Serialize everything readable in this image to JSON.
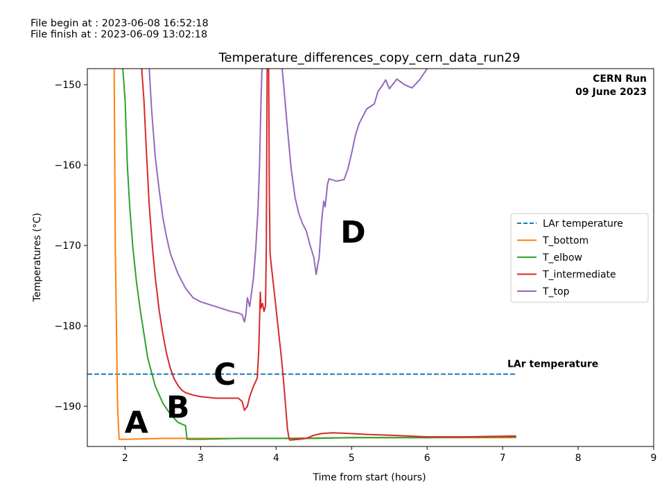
{
  "file_info": {
    "begin": "File begin at : 2023-06-08 16:52:18",
    "finish": "File finish at : 2023-06-09 13:02:18"
  },
  "chart_data": {
    "type": "line",
    "title": "Temperature_differences_copy_cern_data_run29",
    "xlabel": "Time from start (hours)",
    "ylabel": "Temperatures (°C)",
    "xlim": [
      1.5,
      9
    ],
    "ylim": [
      -195,
      -148
    ],
    "xticks": [
      2,
      3,
      4,
      5,
      6,
      7,
      8,
      9
    ],
    "yticks": [
      -190,
      -180,
      -170,
      -160,
      -150
    ],
    "ytick_labels": [
      "−190",
      "−180",
      "−170",
      "−160",
      "−150"
    ],
    "grid": false,
    "legend_position": "center-right",
    "corner_text": [
      "CERN Run",
      "09 June 2023"
    ],
    "reference_line": {
      "name": "LAr temperature",
      "y": -186,
      "x": [
        1.5,
        7.18
      ],
      "label": "LAr temperature",
      "color": "#1f77b4",
      "style": "dashed"
    },
    "series": [
      {
        "name": "T_bottom",
        "color": "#ff7f0e",
        "x": [
          1.85,
          1.87,
          1.9,
          1.92,
          2.0,
          2.5,
          2.8,
          3.0,
          4.0,
          5.0,
          6.0,
          7.18
        ],
        "y": [
          -140,
          -170,
          -190,
          -194.1,
          -194.1,
          -194.0,
          -194.0,
          -194.0,
          -194.0,
          -193.9,
          -193.9,
          -193.9
        ]
      },
      {
        "name": "T_elbow",
        "color": "#2ca02c",
        "x": [
          1.97,
          2.0,
          2.03,
          2.06,
          2.1,
          2.15,
          2.2,
          2.25,
          2.3,
          2.4,
          2.5,
          2.6,
          2.7,
          2.77,
          2.8,
          2.82,
          3.0,
          3.5,
          4.0,
          4.5,
          5.0,
          5.5,
          6.0,
          7.18
        ],
        "y": [
          -148,
          -152,
          -160,
          -165,
          -170,
          -174.5,
          -178,
          -181,
          -184,
          -187.5,
          -189.6,
          -191,
          -192,
          -192.3,
          -192.4,
          -194.1,
          -194.1,
          -194.0,
          -194.0,
          -194.0,
          -193.9,
          -193.9,
          -193.9,
          -193.8
        ]
      },
      {
        "name": "T_intermediate",
        "color": "#d62728",
        "x": [
          2.22,
          2.25,
          2.28,
          2.32,
          2.36,
          2.4,
          2.45,
          2.5,
          2.55,
          2.6,
          2.65,
          2.7,
          2.75,
          2.8,
          2.9,
          3.0,
          3.1,
          3.2,
          3.3,
          3.4,
          3.5,
          3.55,
          3.58,
          3.62,
          3.65,
          3.7,
          3.75,
          3.77,
          3.79,
          3.8,
          3.82,
          3.84,
          3.86,
          3.87,
          3.88,
          3.89,
          3.9,
          3.91,
          3.92,
          3.94,
          3.96,
          3.99,
          4.03,
          4.07,
          4.1,
          4.13,
          4.15,
          4.17,
          4.18,
          4.19,
          4.3,
          4.4,
          4.5,
          4.6,
          4.75,
          5.0,
          5.2,
          5.5,
          6.0,
          6.5,
          7.18
        ],
        "y": [
          -148,
          -152,
          -158,
          -165,
          -170,
          -174,
          -178,
          -181,
          -183.5,
          -185.3,
          -186.6,
          -187.4,
          -188.0,
          -188.3,
          -188.6,
          -188.8,
          -188.9,
          -189.0,
          -189.0,
          -189.0,
          -189.0,
          -189.4,
          -190.5,
          -190.0,
          -188.8,
          -187.5,
          -186.5,
          -183.0,
          -175.8,
          -177.8,
          -177.2,
          -178.2,
          -177.5,
          -170.0,
          -150.0,
          -130.0,
          -145.0,
          -163.0,
          -171.0,
          -172.8,
          -174.5,
          -177.0,
          -180.5,
          -184.0,
          -187.0,
          -190.5,
          -192.8,
          -194.0,
          -194.2,
          -194.2,
          -194.1,
          -194.0,
          -193.6,
          -193.4,
          -193.3,
          -193.4,
          -193.5,
          -193.6,
          -193.8,
          -193.8,
          -193.7
        ]
      },
      {
        "name": "T_top",
        "color": "#9467bd",
        "x": [
          2.32,
          2.35,
          2.4,
          2.45,
          2.5,
          2.55,
          2.6,
          2.7,
          2.8,
          2.9,
          3.0,
          3.2,
          3.4,
          3.5,
          3.55,
          3.58,
          3.6,
          3.62,
          3.65,
          3.7,
          3.73,
          3.76,
          3.78,
          3.8,
          3.82,
          4.0,
          4.08,
          4.1,
          4.15,
          4.2,
          4.25,
          4.3,
          4.35,
          4.4,
          4.45,
          4.5,
          4.53,
          4.55,
          4.57,
          4.6,
          4.63,
          4.65,
          4.68,
          4.7,
          4.8,
          4.9,
          4.95,
          5.0,
          5.05,
          5.1,
          5.2,
          5.3,
          5.35,
          5.4,
          5.45,
          5.5,
          5.6,
          5.7,
          5.8,
          5.9,
          6.0
        ],
        "y": [
          -148,
          -153,
          -159,
          -163,
          -166.5,
          -169,
          -171,
          -173.5,
          -175.3,
          -176.5,
          -177.0,
          -177.6,
          -178.2,
          -178.4,
          -178.6,
          -179.5,
          -178.5,
          -176.5,
          -177.6,
          -174.0,
          -170.5,
          -165.5,
          -160.0,
          -152.0,
          -146.0,
          -146.0,
          -148.0,
          -150.0,
          -155.5,
          -160.5,
          -164.0,
          -166.0,
          -167.3,
          -168.2,
          -170.0,
          -171.5,
          -173.6,
          -172.5,
          -171.5,
          -167.2,
          -164.5,
          -165.2,
          -162.4,
          -161.7,
          -162.0,
          -161.8,
          -160.5,
          -158.5,
          -156.3,
          -154.8,
          -153.0,
          -152.4,
          -150.8,
          -150.2,
          -149.4,
          -150.5,
          -149.3,
          -150.0,
          -150.4,
          -149.4,
          -148.0
        ]
      }
    ],
    "annotations": [
      {
        "text": "A",
        "x": 2.15,
        "y": -192.3
      },
      {
        "text": "B",
        "x": 2.7,
        "y": -190.4
      },
      {
        "text": "C",
        "x": 3.32,
        "y": -186.3
      },
      {
        "text": "D",
        "x": 5.02,
        "y": -168.6
      }
    ]
  }
}
